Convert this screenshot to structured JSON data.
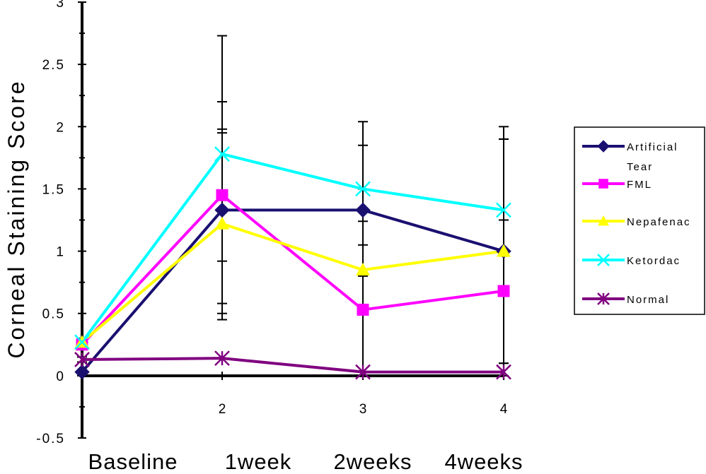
{
  "chart_data": {
    "type": "line",
    "title": "",
    "ylabel": "Corneal Staining Score",
    "xlabel": "",
    "ylim": [
      -0.5,
      3
    ],
    "yticks": [
      "3",
      "2.5",
      "2",
      "1.5",
      "1",
      "0.5",
      "0",
      "-0.5"
    ],
    "y_tick_values": [
      3,
      2.5,
      2,
      1.5,
      1,
      0.5,
      0,
      -0.5
    ],
    "x_numbers": [
      "2",
      "3",
      "4"
    ],
    "categories": [
      "Baseline",
      "1week",
      "2weeks",
      "4weeks"
    ],
    "legend_position": "right",
    "series": [
      {
        "name": "Artificial Tear",
        "values": [
          0.03,
          1.33,
          1.33,
          1.0
        ],
        "color": "#1a1070",
        "marker": "diamond",
        "err_upper": [
          0.11,
          2.2,
          1.85,
          1.9
        ],
        "err_lower": [
          0.0,
          0.45,
          0.8,
          0.1
        ]
      },
      {
        "name": "FML",
        "values": [
          0.25,
          1.45,
          0.53,
          0.68
        ],
        "color": "#ff00ff",
        "marker": "square",
        "err_upper": [
          0.3,
          2.73,
          2.04,
          2.0
        ],
        "err_lower": [
          0.15,
          0.5,
          0.0,
          0.0
        ]
      },
      {
        "name": "Nepafenac",
        "values": [
          0.27,
          1.22,
          0.85,
          1.0
        ],
        "color": "#ffff00",
        "marker": "triangle",
        "err_upper": [
          0.27,
          1.95,
          1.24,
          1.25
        ],
        "err_lower": [
          0.27,
          0.58,
          0.5,
          0.0
        ]
      },
      {
        "name": "Ketordac",
        "values": [
          0.27,
          1.78,
          1.5,
          1.33
        ],
        "color": "#00ffff",
        "marker": "x",
        "err_upper": [
          0.27,
          1.98,
          1.5,
          1.9
        ],
        "err_lower": [
          0.27,
          0.92,
          1.05,
          0.1
        ]
      },
      {
        "name": "Normal",
        "values": [
          0.13,
          0.14,
          0.03,
          0.03
        ],
        "color": "#800080",
        "marker": "star",
        "err_upper": [
          0.3,
          0.14,
          0.03,
          0.03
        ],
        "err_lower": [
          0.0,
          0.14,
          0.03,
          0.03
        ]
      }
    ]
  }
}
